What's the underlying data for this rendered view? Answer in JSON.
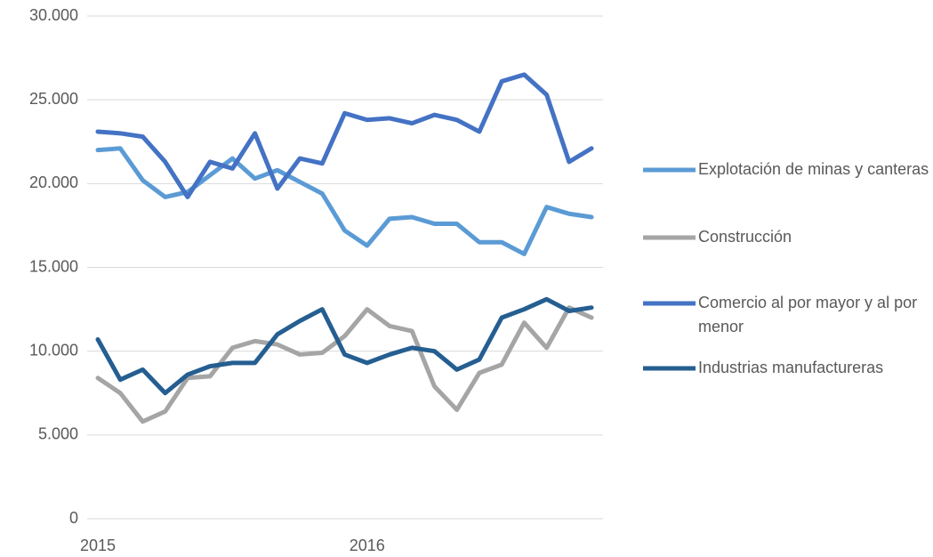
{
  "chart_data": {
    "type": "line",
    "categories": [
      "2015",
      null,
      null,
      null,
      null,
      null,
      null,
      null,
      null,
      null,
      null,
      null,
      "2016",
      null,
      null,
      null,
      null,
      null,
      null,
      null,
      null,
      null,
      null
    ],
    "series": [
      {
        "name": "Explotación de minas y canteras",
        "color": "#5b9bd5",
        "values": [
          22000,
          22100,
          20200,
          19200,
          19500,
          20500,
          21500,
          20300,
          20800,
          20100,
          19400,
          17200,
          16300,
          17900,
          18000,
          17600,
          17600,
          16500,
          16500,
          15800,
          18600,
          18200,
          18000
        ]
      },
      {
        "name": "Construcción",
        "color": "#a5a5a5",
        "values": [
          8400,
          7500,
          5800,
          6400,
          8400,
          8500,
          10200,
          10600,
          10400,
          9800,
          9900,
          10900,
          12500,
          11500,
          11200,
          7900,
          6500,
          8700,
          9200,
          11700,
          10200,
          12600,
          12000
        ]
      },
      {
        "name": "Comercio al por mayor y al por menor",
        "color": "#4472c4",
        "values": [
          23100,
          23000,
          22800,
          21300,
          19200,
          21300,
          20900,
          23000,
          19700,
          21500,
          21200,
          24200,
          23800,
          23900,
          23600,
          24100,
          23800,
          23100,
          26100,
          26500,
          25300,
          21300,
          22100
        ]
      },
      {
        "name": "Industrias manufactureras",
        "color": "#255e91",
        "values": [
          10700,
          8300,
          8900,
          7500,
          8600,
          9100,
          9300,
          9300,
          11000,
          11800,
          12500,
          9800,
          9300,
          9800,
          10200,
          10000,
          8900,
          9500,
          12000,
          12500,
          13100,
          12400,
          12600
        ]
      }
    ],
    "ylim": [
      0,
      30000
    ],
    "yticks": [
      0,
      {
        "value": 5000,
        "label": "5.000"
      },
      {
        "value": 10000,
        "label": "10.000"
      },
      {
        "value": 15000,
        "label": "15.000"
      },
      {
        "value": 20000,
        "label": "20.000"
      },
      {
        "value": 25000,
        "label": "25.000"
      },
      {
        "value": 30000,
        "label": "30.000"
      }
    ],
    "grid": true,
    "legend": "right"
  }
}
